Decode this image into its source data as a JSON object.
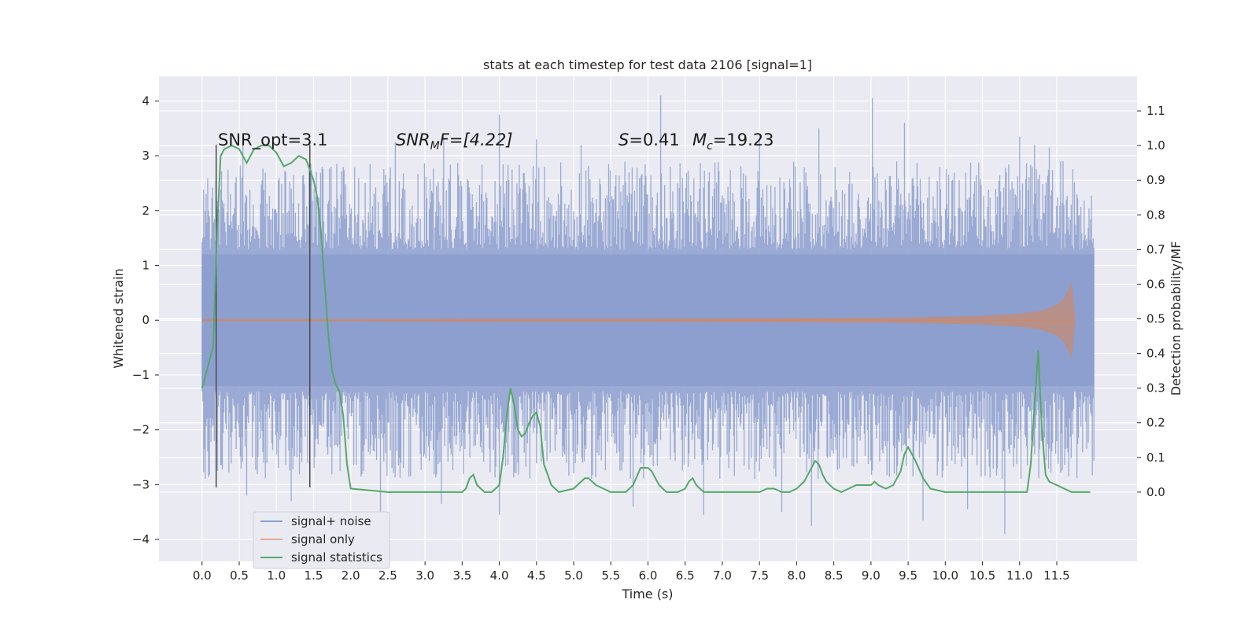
{
  "chart_data": {
    "type": "line",
    "title": "stats at each timestep for test data 2106 [signal=1]",
    "xlabel": "Time (s)",
    "ylabel_left": "Whitened strain",
    "ylabel_right": "Detection probability/MF",
    "xlim": [
      -0.58,
      12.58
    ],
    "ylim_left": [
      -4.4,
      4.45
    ],
    "ylim_right": [
      -0.2,
      1.2
    ],
    "x_ticks": [
      0.0,
      0.5,
      1.0,
      1.5,
      2.0,
      2.5,
      3.0,
      3.5,
      4.0,
      4.5,
      5.0,
      5.5,
      6.0,
      6.5,
      7.0,
      7.5,
      8.0,
      8.5,
      9.0,
      9.5,
      10.0,
      10.5,
      11.0,
      11.5
    ],
    "x_tick_labels": [
      "0.0",
      "0.5",
      "1.0",
      "1.5",
      "2.0",
      "2.5",
      "3.0",
      "3.5",
      "4.0",
      "4.5",
      "5.0",
      "5.5",
      "6.0",
      "6.5",
      "7.0",
      "7.5",
      "8.0",
      "8.5",
      "9.0",
      "9.5",
      "10.0",
      "10.5",
      "11.0",
      "11.5"
    ],
    "y_left_ticks": [
      -4,
      -3,
      -2,
      -1,
      0,
      1,
      2,
      3,
      4
    ],
    "y_left_tick_labels": [
      "−4",
      "−3",
      "−2",
      "−1",
      "0",
      "1",
      "2",
      "3",
      "4"
    ],
    "y_right_ticks": [
      0.0,
      0.1,
      0.2,
      0.3,
      0.4,
      0.5,
      0.6,
      0.7,
      0.8,
      0.9,
      1.0,
      1.1
    ],
    "y_right_tick_labels": [
      "0.0",
      "0.1",
      "0.2",
      "0.3",
      "0.4",
      "0.5",
      "0.6",
      "0.7",
      "0.8",
      "0.9",
      "1.0",
      "1.1"
    ],
    "grid": true,
    "legend_position": "lower-left",
    "legend": [
      "signal+ noise",
      "signal only",
      "signal statistics"
    ],
    "annotations": {
      "snr_opt": "SNR_opt=3.1",
      "snr_mf_symbol": "SNR",
      "snr_mf_sub": "M",
      "snr_mf_rest": "F=[4.22]",
      "s_symbol": "S",
      "s_value": "=0.41",
      "mc_symbol": "M",
      "mc_sub": "c",
      "mc_value": "=19.23"
    },
    "vertical_markers_x": [
      0.19,
      1.45
    ],
    "vertical_marker_ylim": [
      -3.05,
      3.2
    ],
    "colors": {
      "signal_noise": "#8c9fcf",
      "signal_only": "#dd8452",
      "signal_statistics": "#55a868",
      "axes_bg": "#eaeaf2",
      "grid": "#ffffff",
      "marker": "#4a4a4a"
    },
    "series": [
      {
        "name": "signal+ noise",
        "description_type": "dense noise band",
        "x_range": [
          0.0,
          12.0
        ],
        "core_band": [
          -1.2,
          1.2
        ],
        "typical_envelope": [
          -2.8,
          2.9
        ],
        "spikes": [
          {
            "x": 4.0,
            "y": 3.75
          },
          {
            "x": 6.17,
            "y": 4.1
          },
          {
            "x": 9.02,
            "y": 4.05
          },
          {
            "x": 0.55,
            "y": 3.2
          },
          {
            "x": 2.6,
            "y": 3.25
          },
          {
            "x": 3.25,
            "y": 3.35
          },
          {
            "x": 4.5,
            "y": 3.3
          },
          {
            "x": 5.1,
            "y": 3.2
          },
          {
            "x": 7.5,
            "y": 3.4
          },
          {
            "x": 8.3,
            "y": 3.5
          },
          {
            "x": 9.45,
            "y": 3.6
          },
          {
            "x": 11.0,
            "y": 3.35
          },
          {
            "x": 11.2,
            "y": 3.2
          },
          {
            "x": 11.4,
            "y": 3.15
          },
          {
            "x": 4.0,
            "y": -3.55
          },
          {
            "x": 10.8,
            "y": -3.9
          },
          {
            "x": 8.2,
            "y": -3.75
          },
          {
            "x": 3.22,
            "y": -3.35
          },
          {
            "x": 2.4,
            "y": -3.8
          },
          {
            "x": 7.8,
            "y": -3.5
          },
          {
            "x": 6.75,
            "y": -3.55
          },
          {
            "x": 9.7,
            "y": -3.65
          },
          {
            "x": 0.6,
            "y": -3.2
          },
          {
            "x": 5.8,
            "y": -3.4
          },
          {
            "x": 1.2,
            "y": -3.3
          },
          {
            "x": 10.3,
            "y": -3.45
          }
        ]
      },
      {
        "name": "signal only",
        "description_type": "chirp",
        "x": [
          0.0,
          2.0,
          4.0,
          6.0,
          8.0,
          9.5,
          10.5,
          11.0,
          11.3,
          11.5,
          11.6,
          11.65,
          11.7,
          11.75
        ],
        "amplitude": [
          0.02,
          0.02,
          0.03,
          0.03,
          0.04,
          0.05,
          0.08,
          0.12,
          0.18,
          0.28,
          0.4,
          0.55,
          0.7,
          0.0
        ]
      },
      {
        "name": "signal statistics",
        "x": [
          0.0,
          0.15,
          0.2,
          0.25,
          0.3,
          0.4,
          0.5,
          0.6,
          0.7,
          0.8,
          0.9,
          1.0,
          1.1,
          1.2,
          1.3,
          1.4,
          1.5,
          1.55,
          1.6,
          1.65,
          1.7,
          1.75,
          1.8,
          1.85,
          1.9,
          1.95,
          2.0,
          2.5,
          3.0,
          3.5,
          3.55,
          3.6,
          3.65,
          3.7,
          3.8,
          3.9,
          4.0,
          4.05,
          4.1,
          4.15,
          4.2,
          4.25,
          4.3,
          4.35,
          4.4,
          4.45,
          4.5,
          4.55,
          4.6,
          4.7,
          4.8,
          5.0,
          5.1,
          5.15,
          5.2,
          5.3,
          5.4,
          5.5,
          5.6,
          5.7,
          5.8,
          5.9,
          6.0,
          6.05,
          6.1,
          6.15,
          6.2,
          6.25,
          6.3,
          6.4,
          6.5,
          6.55,
          6.6,
          6.65,
          6.7,
          6.75,
          6.8,
          6.85,
          7.0,
          7.5,
          7.6,
          7.7,
          7.8,
          7.9,
          8.0,
          8.1,
          8.2,
          8.25,
          8.3,
          8.35,
          8.4,
          8.5,
          8.6,
          8.7,
          8.8,
          8.9,
          9.0,
          9.05,
          9.1,
          9.2,
          9.3,
          9.4,
          9.45,
          9.5,
          9.55,
          9.6,
          9.7,
          9.8,
          10.0,
          10.5,
          10.8,
          11.0,
          11.1,
          11.15,
          11.2,
          11.25,
          11.3,
          11.35,
          11.4,
          11.5,
          11.6,
          11.7,
          11.8,
          11.95
        ],
        "values": [
          0.3,
          0.42,
          0.75,
          0.97,
          0.99,
          1.0,
          0.99,
          0.95,
          0.99,
          1.0,
          1.0,
          0.98,
          0.94,
          0.95,
          0.97,
          0.96,
          0.9,
          0.85,
          0.75,
          0.6,
          0.45,
          0.35,
          0.31,
          0.29,
          0.22,
          0.08,
          0.01,
          0.0,
          0.0,
          0.0,
          0.01,
          0.04,
          0.05,
          0.02,
          0.0,
          0.0,
          0.02,
          0.1,
          0.22,
          0.3,
          0.25,
          0.18,
          0.16,
          0.17,
          0.2,
          0.22,
          0.23,
          0.19,
          0.08,
          0.02,
          0.0,
          0.01,
          0.03,
          0.04,
          0.04,
          0.02,
          0.01,
          0.0,
          0.0,
          0.0,
          0.02,
          0.07,
          0.07,
          0.06,
          0.04,
          0.02,
          0.01,
          0.0,
          0.0,
          0.0,
          0.01,
          0.03,
          0.04,
          0.02,
          0.01,
          0.0,
          0.0,
          0.0,
          0.0,
          0.0,
          0.01,
          0.01,
          0.0,
          0.0,
          0.01,
          0.03,
          0.07,
          0.09,
          0.08,
          0.05,
          0.03,
          0.01,
          0.0,
          0.01,
          0.02,
          0.02,
          0.02,
          0.03,
          0.02,
          0.01,
          0.02,
          0.06,
          0.11,
          0.13,
          0.11,
          0.09,
          0.04,
          0.01,
          0.0,
          0.0,
          0.0,
          0.0,
          0.0,
          0.08,
          0.25,
          0.41,
          0.18,
          0.05,
          0.03,
          0.02,
          0.01,
          0.0,
          0.0,
          0.0
        ]
      }
    ]
  }
}
